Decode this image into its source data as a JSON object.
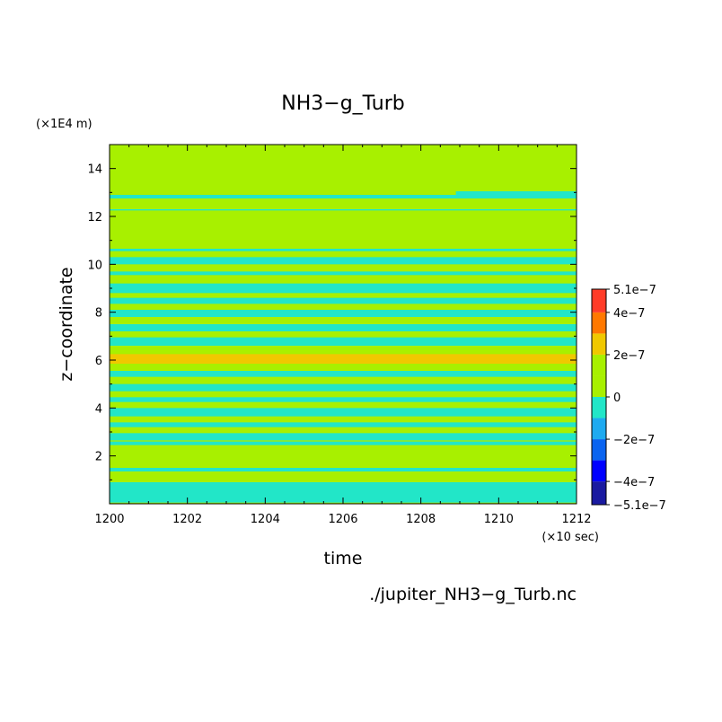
{
  "chart_data": {
    "type": "heatmap",
    "title": "NH3−g_Turb",
    "xlabel": "time",
    "ylabel": "z−coordinate",
    "x_unit": "(×10 sec)",
    "y_unit": "(×1E4 m)",
    "footnote": "./jupiter_NH3−g_Turb.nc",
    "xlim": [
      1200,
      1212
    ],
    "ylim": [
      0,
      15
    ],
    "x_ticks": [
      1200,
      1202,
      1204,
      1206,
      1208,
      1210,
      1212
    ],
    "y_ticks": [
      2,
      4,
      6,
      8,
      10,
      12,
      14
    ],
    "grid": false,
    "colorbar": {
      "placement": "right",
      "min": -5.1e-07,
      "max": 5.1e-07,
      "labels": [
        "5.1e−7",
        "4e−7",
        "2e−7",
        "0",
        "−2e−7",
        "−4e−7",
        "−5.1e−7"
      ],
      "label_values": [
        5.1e-07,
        4e-07,
        2e-07,
        0,
        -2e-07,
        -4e-07,
        -5.1e-07
      ],
      "levels": [
        {
          "from": -5.1e-07,
          "to": -4e-07,
          "color": "#1a1aa0"
        },
        {
          "from": -4e-07,
          "to": -3e-07,
          "color": "#0000ff"
        },
        {
          "from": -3e-07,
          "to": -2e-07,
          "color": "#0a64f0"
        },
        {
          "from": -2e-07,
          "to": -1e-07,
          "color": "#1eaaf0"
        },
        {
          "from": -1e-07,
          "to": 0,
          "color": "#22e6c8"
        },
        {
          "from": 0,
          "to": 1e-07,
          "color": "#a8f000"
        },
        {
          "from": 1e-07,
          "to": 2e-07,
          "color": "#a8f000"
        },
        {
          "from": 2e-07,
          "to": 3e-07,
          "color": "#f0c800"
        },
        {
          "from": 3e-07,
          "to": 4e-07,
          "color": "#ff7800"
        },
        {
          "from": 4e-07,
          "to": 5.1e-07,
          "color": "#ff3c28"
        }
      ]
    },
    "background_color": "#a8f000",
    "bands": [
      {
        "y0": 0.05,
        "y1": 0.9,
        "value": -5e-08
      },
      {
        "y0": 1.35,
        "y1": 1.5,
        "value": -5e-08
      },
      {
        "y0": 2.45,
        "y1": 2.6,
        "value": -5e-08
      },
      {
        "y0": 2.65,
        "y1": 2.95,
        "value": -5e-08
      },
      {
        "y0": 3.2,
        "y1": 3.4,
        "value": -5e-08
      },
      {
        "y0": 3.65,
        "y1": 4.0,
        "value": -5e-08
      },
      {
        "y0": 4.25,
        "y1": 4.45,
        "value": -5e-08
      },
      {
        "y0": 4.7,
        "y1": 5.0,
        "value": -5e-08
      },
      {
        "y0": 5.3,
        "y1": 5.55,
        "value": -5e-08
      },
      {
        "y0": 5.85,
        "y1": 6.25,
        "value": 2.5e-07
      },
      {
        "y0": 6.6,
        "y1": 6.95,
        "value": -5e-08
      },
      {
        "y0": 7.2,
        "y1": 7.5,
        "value": -5e-08
      },
      {
        "y0": 7.8,
        "y1": 8.1,
        "value": -5e-08
      },
      {
        "y0": 8.35,
        "y1": 8.6,
        "value": -5e-08
      },
      {
        "y0": 8.8,
        "y1": 9.2,
        "value": -5e-08
      },
      {
        "y0": 9.55,
        "y1": 9.7,
        "value": -5e-08
      },
      {
        "y0": 10.0,
        "y1": 10.3,
        "value": -5e-08
      },
      {
        "y0": 10.55,
        "y1": 10.65,
        "value": -5e-08
      },
      {
        "y0": 12.25,
        "y1": 12.3,
        "value": -5e-08
      },
      {
        "y0": 12.75,
        "y1": 12.9,
        "value": -5e-08
      },
      {
        "y0": 12.9,
        "y1": 13.05,
        "value": -5e-08,
        "x0": 1208.9,
        "x1": 1212
      }
    ]
  }
}
